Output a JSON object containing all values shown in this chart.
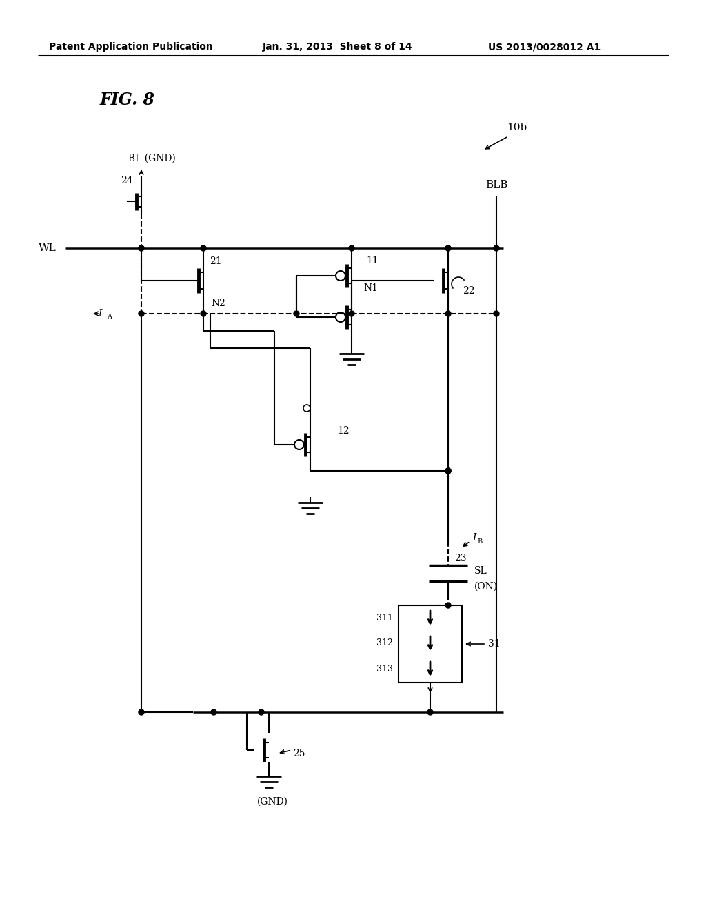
{
  "header_left": "Patent Application Publication",
  "header_center": "Jan. 31, 2013  Sheet 8 of 14",
  "header_right": "US 2013/0028012 A1",
  "bg_color": "#ffffff",
  "text_color": "#000000"
}
